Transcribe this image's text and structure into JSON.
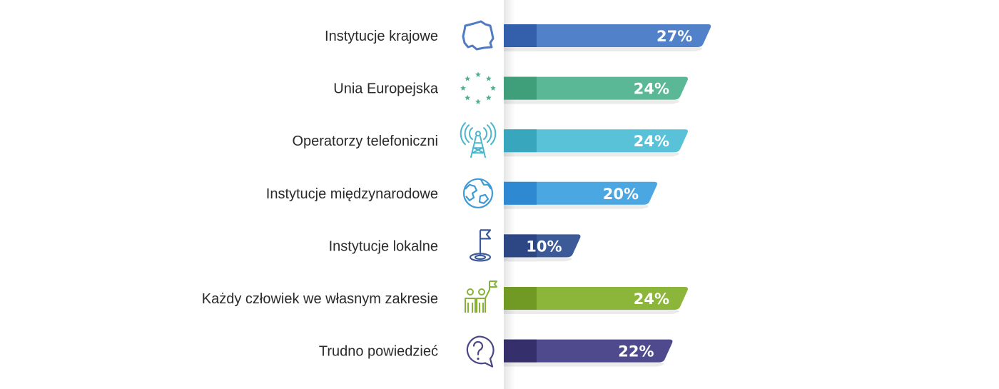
{
  "chart_data": {
    "type": "bar",
    "orientation": "horizontal",
    "title": "",
    "xlabel": "",
    "ylabel": "",
    "xlim": [
      0,
      27
    ],
    "grid": false,
    "legend": "none",
    "categories": [
      "Instytucje krajowe",
      "Unia Europejska",
      "Operatorzy telefoniczni",
      "Instytucje międzynarodowe",
      "Instytucje lokalne",
      "Każdy człowiek we własnym zakresie",
      "Trudno powiedzieć"
    ],
    "values": [
      27,
      24,
      24,
      20,
      10,
      24,
      22
    ],
    "value_labels": [
      "27%",
      "24%",
      "24%",
      "20%",
      "10%",
      "24%",
      "22%"
    ],
    "colors": [
      "#5181c8",
      "#5bb896",
      "#59c1d8",
      "#4aa7e2",
      "#3c5a98",
      "#8cb639",
      "#4f4a8d"
    ],
    "accent_colors": [
      "#2f5aa6",
      "#3c9a77",
      "#33a2b8",
      "#2a84cf",
      "#2a4380",
      "#6c9522",
      "#302c66"
    ],
    "icons": [
      "poland-map-icon",
      "eu-stars-icon",
      "antenna-tower-icon",
      "globe-icon",
      "flag-goal-icon",
      "people-flag-icon",
      "question-bubble-icon"
    ],
    "icon_colors": [
      "#4f7bc4",
      "#4fb08e",
      "#4ab5cc",
      "#3f9bd6",
      "#3c5a98",
      "#86b23a",
      "#4b4786"
    ]
  }
}
